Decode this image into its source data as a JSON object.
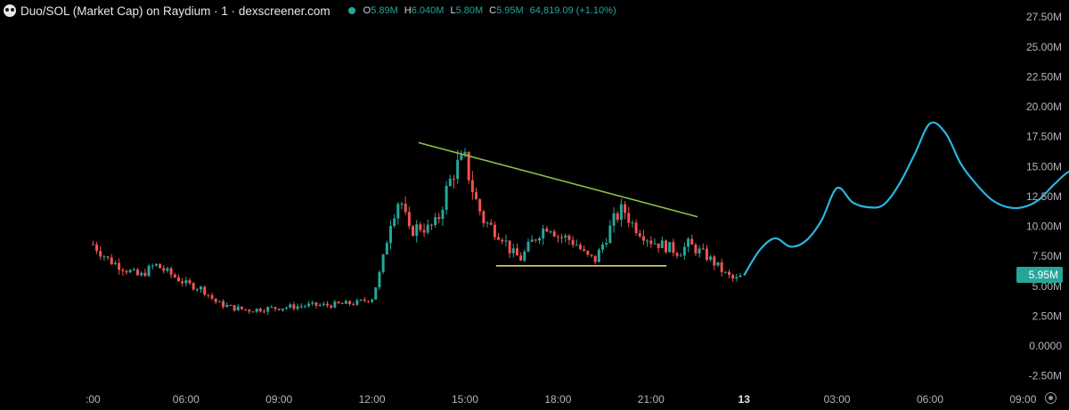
{
  "header": {
    "title": "Duo/SOL (Market Cap) on Raydium · 1 · dexscreener.com",
    "open_label": "O",
    "open": "5.89M",
    "high_label": "H",
    "high": "6.040M",
    "low_label": "L",
    "low": "5.80M",
    "close_label": "C",
    "close": "5.95M",
    "change": "64,819.09 (+1.10%)"
  },
  "price_badge": "5.95M",
  "colors": {
    "up": "#26a69a",
    "down": "#ef5350",
    "projection": "#29b6e0",
    "resistance": "#8bc34a",
    "support": "#f5e37a"
  },
  "chart_data": {
    "type": "line",
    "y_ticks": [
      "27.50M",
      "25.00M",
      "22.50M",
      "20.00M",
      "17.50M",
      "15.00M",
      "12.50M",
      "10.00M",
      "7.50M",
      "5.00M",
      "2.50M",
      "0.0000",
      "-2.50M"
    ],
    "y_tick_values": [
      27.5,
      25,
      22.5,
      20,
      17.5,
      15,
      12.5,
      10,
      7.5,
      5,
      2.5,
      0,
      -2.5
    ],
    "x_ticks": [
      ":00",
      "06:00",
      "09:00",
      "12:00",
      "15:00",
      "18:00",
      "21:00",
      "13",
      "03:00",
      "06:00",
      "09:00"
    ],
    "x_tick_hours": [
      3,
      6,
      9,
      12,
      15,
      18,
      21,
      24,
      27,
      30,
      33
    ],
    "ylim": [
      -3.5,
      28.5
    ],
    "series": [
      {
        "kind": "candlestick",
        "x": [
          3,
          3.5,
          4,
          4.5,
          5,
          5.5,
          6,
          6.5,
          7,
          7.5,
          8,
          8.5,
          9,
          9.5,
          10,
          10.5,
          11,
          11.5,
          12,
          12.3,
          12.6,
          12.9,
          13.2,
          13.5,
          13.8,
          14.1,
          14.4,
          14.7,
          15,
          15.3,
          15.6,
          15.9,
          16.2,
          16.5,
          16.8,
          17.1,
          17.4,
          17.7,
          18,
          18.3,
          18.6,
          18.9,
          19.2,
          19.5,
          19.8,
          20.1,
          20.4,
          20.7,
          21,
          21.3,
          21.6,
          21.9,
          22.2,
          22.5,
          22.8,
          23.1,
          23.4,
          23.7,
          24
        ],
        "close": [
          8.5,
          7.2,
          6.5,
          5.8,
          6.8,
          6.0,
          5.2,
          4.8,
          3.6,
          3.2,
          3.0,
          3.1,
          3.2,
          3.3,
          3.4,
          3.4,
          3.5,
          3.6,
          4.0,
          6.5,
          10.5,
          12.5,
          9.5,
          10.0,
          9.8,
          10.3,
          13.0,
          15.0,
          15.5,
          12.5,
          10.5,
          9.8,
          9.2,
          7.8,
          7.3,
          8.5,
          9.5,
          10.2,
          9.2,
          9.0,
          8.5,
          7.5,
          7.2,
          8.8,
          10.5,
          11.5,
          10.2,
          9.5,
          8.8,
          8.5,
          8.2,
          7.8,
          8.5,
          8.0,
          7.5,
          6.8,
          6.0,
          5.5,
          5.95
        ]
      },
      {
        "kind": "projection",
        "x": [
          24,
          24.5,
          25,
          25.5,
          26,
          26.5,
          27,
          27.5,
          28,
          28.5,
          29,
          29.5,
          30,
          30.5,
          31,
          31.5,
          32,
          32.5,
          33,
          33.5,
          34,
          34.5,
          35,
          35.5
        ],
        "y": [
          5.9,
          8.0,
          9.0,
          8.3,
          8.8,
          10.5,
          13.2,
          12.0,
          11.6,
          11.8,
          13.5,
          16.0,
          18.6,
          17.8,
          15.2,
          13.5,
          12.2,
          11.6,
          11.6,
          12.2,
          13.5,
          14.6,
          14.7,
          14.5
        ]
      },
      {
        "kind": "resistance-line",
        "x": [
          13.5,
          22.5
        ],
        "y": [
          17.0,
          10.8
        ]
      },
      {
        "kind": "support-line",
        "x": [
          16.0,
          21.5
        ],
        "y": [
          6.7,
          6.7
        ]
      }
    ]
  }
}
